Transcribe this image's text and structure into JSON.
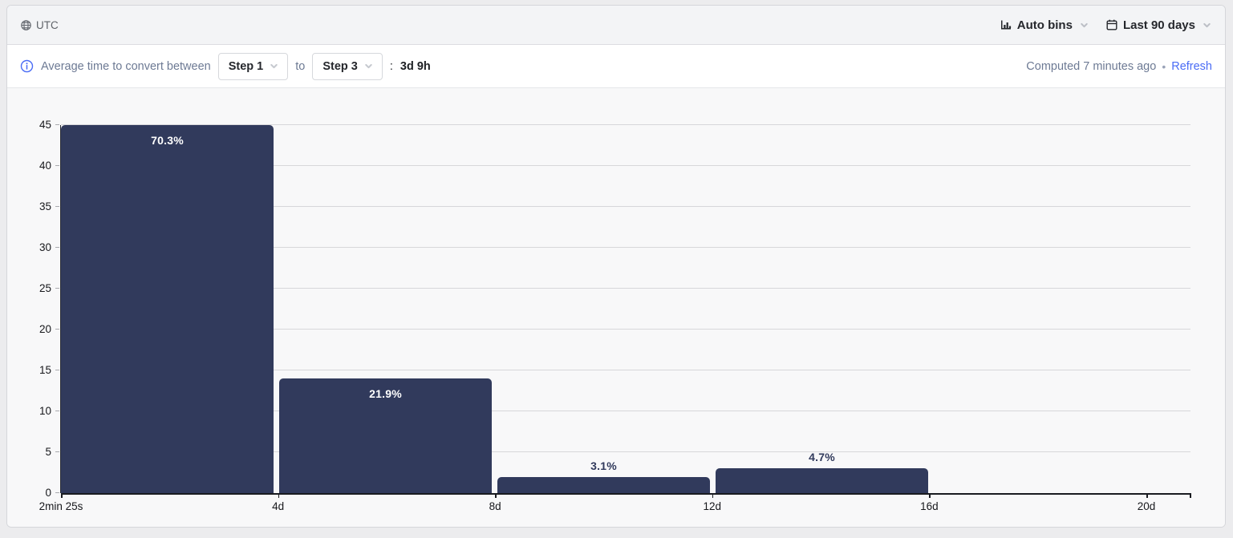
{
  "toolbar": {
    "timezone_label": "UTC",
    "bins_button": "Auto bins",
    "date_range_button": "Last 90 days"
  },
  "insight_header": {
    "info_text": "Average time to convert between",
    "from_step": "Step 1",
    "between_connector": "to",
    "to_step": "Step 3",
    "colon": ":",
    "average_conversion_time": "3d 9h",
    "computed_status": "Computed 7 minutes ago",
    "bullet": "•",
    "refresh_link": "Refresh"
  },
  "chart_data": {
    "type": "bar",
    "description": "Distribution of time to convert between funnel steps",
    "ylim": [
      0,
      45
    ],
    "y_ticks": [
      0,
      5,
      10,
      15,
      20,
      25,
      30,
      35,
      40,
      45
    ],
    "x_tick_labels": [
      "2min 25s",
      "4d",
      "8d",
      "12d",
      "16d",
      "20d"
    ],
    "bars": [
      {
        "count": 45,
        "percent_label": "70.3%"
      },
      {
        "count": 14,
        "percent_label": "21.9%"
      },
      {
        "count": 2,
        "percent_label": "3.1%"
      },
      {
        "count": 3,
        "percent_label": "4.7%"
      }
    ],
    "grid": true,
    "legend": "none"
  },
  "colors": {
    "bar": "#313a5c",
    "link": "#4a6cf5",
    "muted_text": "#6d7a94",
    "toolbar_bg": "#f3f4f6",
    "chart_bg": "#f8f8f9"
  }
}
